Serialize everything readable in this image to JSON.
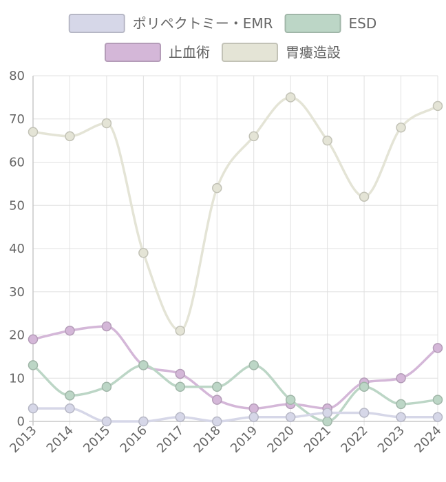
{
  "chart_data": {
    "type": "line",
    "x": [
      "2013",
      "2014",
      "2015",
      "2016",
      "2017",
      "2018",
      "2019",
      "2020",
      "2021",
      "2022",
      "2023",
      "2024"
    ],
    "ylim": [
      0,
      80
    ],
    "yticks": [
      0,
      10,
      20,
      30,
      40,
      50,
      60,
      70,
      80
    ],
    "grid": true,
    "legend_position": "top",
    "series": [
      {
        "name": "ポリペクトミー・EMR",
        "color": "#d6d7e8",
        "values": [
          3,
          3,
          0,
          0,
          1,
          0,
          1,
          1,
          2,
          2,
          1,
          1
        ]
      },
      {
        "name": "ESD",
        "color": "#bcd6c6",
        "values": [
          13,
          6,
          8,
          13,
          8,
          8,
          13,
          5,
          0,
          8,
          4,
          5
        ]
      },
      {
        "name": "止血術",
        "color": "#d4b7d8",
        "values": [
          19,
          21,
          22,
          13,
          11,
          5,
          3,
          4,
          3,
          9,
          10,
          17
        ]
      },
      {
        "name": "胃瘻造設",
        "color": "#e4e4d6",
        "values": [
          67,
          66,
          69,
          39,
          21,
          54,
          66,
          75,
          65,
          52,
          68,
          73
        ]
      }
    ]
  }
}
